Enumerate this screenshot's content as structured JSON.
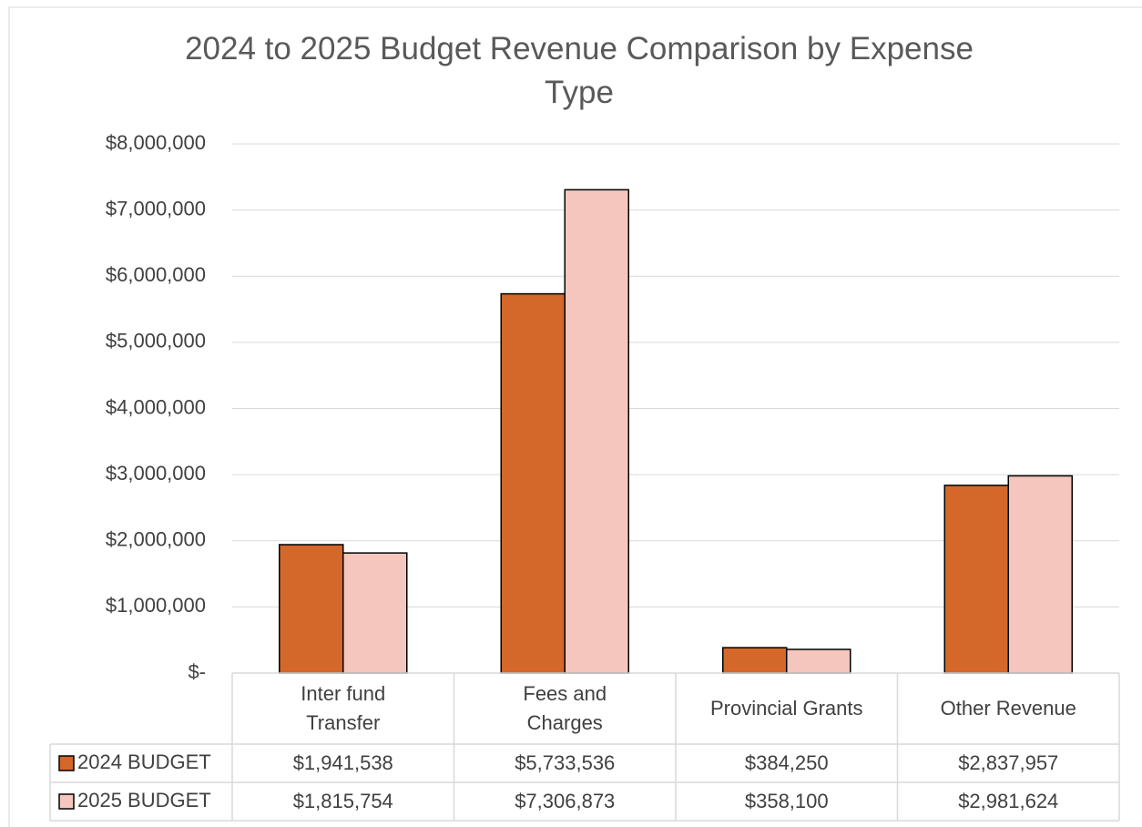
{
  "chart_data": {
    "type": "bar",
    "title": "2024 to 2025 Budget Revenue Comparison by Expense Type",
    "categories": [
      "Inter fund\nTransfer",
      "Fees and\nCharges",
      "Provincial Grants",
      "Other Revenue"
    ],
    "series": [
      {
        "name": "2024 BUDGET",
        "color": "#d4672a",
        "values": [
          1941538,
          5733536,
          384250,
          2837957
        ],
        "value_labels": [
          "$1,941,538",
          "$5,733,536",
          "$384,250",
          "$2,837,957"
        ]
      },
      {
        "name": "2025 BUDGET",
        "color": "#f5c6bd",
        "values": [
          1815754,
          7306873,
          358100,
          2981624
        ],
        "value_labels": [
          "$1,815,754",
          "$7,306,873",
          "$358,100",
          "$2,981,624"
        ]
      }
    ],
    "ylim": [
      0,
      8000000
    ],
    "yticks": [
      {
        "value": 0,
        "label": "$-"
      },
      {
        "value": 1000000,
        "label": "$1,000,000"
      },
      {
        "value": 2000000,
        "label": "$2,000,000"
      },
      {
        "value": 3000000,
        "label": "$3,000,000"
      },
      {
        "value": 4000000,
        "label": "$4,000,000"
      },
      {
        "value": 5000000,
        "label": "$5,000,000"
      },
      {
        "value": 6000000,
        "label": "$6,000,000"
      },
      {
        "value": 7000000,
        "label": "$7,000,000"
      },
      {
        "value": 8000000,
        "label": "$8,000,000"
      }
    ],
    "grid": true
  }
}
